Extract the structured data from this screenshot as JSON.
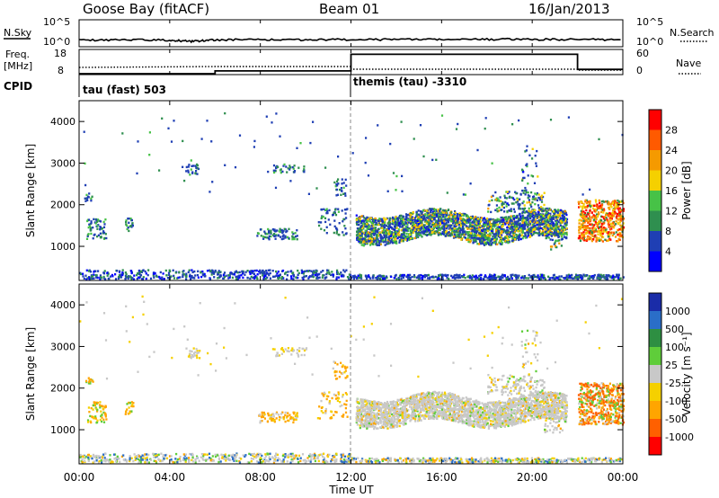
{
  "header": {
    "station": "Goose Bay (fitACF)",
    "beam": "Beam 01",
    "date": "16/Jan/2013"
  },
  "noise_panel": {
    "left_label": "N.Sky",
    "right_label": "N.Search",
    "left_ticks": [
      "10^5",
      "10^0"
    ],
    "right_ticks": [
      "10^5",
      "10^0"
    ]
  },
  "freq_panel": {
    "left_label_line1": "Freq.",
    "left_label_line2": "[MHz]",
    "right_label": "Nave",
    "left_ticks": [
      "18",
      "8"
    ],
    "right_ticks": [
      "60",
      "0"
    ]
  },
  "cpid_panel": {
    "label": "CPID",
    "segments": [
      {
        "start_hour": 0,
        "text": "tau (fast) 503"
      },
      {
        "start_hour": 12,
        "text": "themis (tau) -3310"
      }
    ]
  },
  "x_axis": {
    "label": "Time UT",
    "ticks": [
      "00:00",
      "04:00",
      "08:00",
      "12:00",
      "16:00",
      "20:00",
      "00:00"
    ]
  },
  "colors": {
    "power": [
      "#0000ff",
      "#1f3fb4",
      "#2f8f4f",
      "#47c247",
      "#f5d000",
      "#f59a00",
      "#ff5a00",
      "#ff0000"
    ],
    "velocity": [
      "#1a2ca8",
      "#2a6ec8",
      "#2e8f42",
      "#5fcd3a",
      "#c8c8c8",
      "#f5d000",
      "#ffa500",
      "#ff6000",
      "#ff0000"
    ]
  },
  "chart_data": [
    {
      "type": "line",
      "name": "noise",
      "xlabel": "",
      "ylabel": "N.Sky",
      "x_range": [
        0,
        24
      ],
      "yscale": "log",
      "series": [
        {
          "x": [
            0,
            2,
            4,
            5,
            6,
            8,
            10,
            12,
            14,
            16,
            18,
            20,
            22,
            24
          ],
          "values": [
            12,
            14,
            11,
            6,
            13,
            15,
            12,
            16,
            16,
            17,
            18,
            17,
            16,
            15
          ]
        }
      ]
    },
    {
      "type": "line",
      "name": "frequency",
      "xlabel": "",
      "ylabel": "Freq. [MHz]",
      "x_range": [
        0,
        24
      ],
      "ylim": [
        8,
        18
      ],
      "series": [
        {
          "x": [
            0,
            6,
            6,
            12,
            12,
            22,
            22,
            24
          ],
          "values": [
            8,
            8,
            9.3,
            9.3,
            17,
            17,
            10,
            10
          ]
        }
      ]
    },
    {
      "type": "heatmap",
      "name": "power",
      "ylabel": "Slant Range [km]",
      "xlabel": "",
      "x_range": [
        0,
        24
      ],
      "ylim": [
        180,
        4500
      ],
      "y_ticks": [
        1000,
        2000,
        3000,
        4000
      ],
      "colorbar": {
        "label": "Power [dB]",
        "ticks": [
          "4",
          "8",
          "12",
          "16",
          "20",
          "24",
          "28"
        ]
      }
    },
    {
      "type": "heatmap",
      "name": "velocity",
      "ylabel": "Slant Range [km]",
      "xlabel": "Time UT",
      "x_range": [
        0,
        24
      ],
      "ylim": [
        180,
        4500
      ],
      "y_ticks": [
        1000,
        2000,
        3000,
        4000
      ],
      "colorbar": {
        "label": "Velocity [m s⁻¹]",
        "ticks": [
          "1000",
          "500",
          "100",
          "25",
          "-25",
          "-100",
          "-500",
          "-1000"
        ]
      }
    }
  ]
}
